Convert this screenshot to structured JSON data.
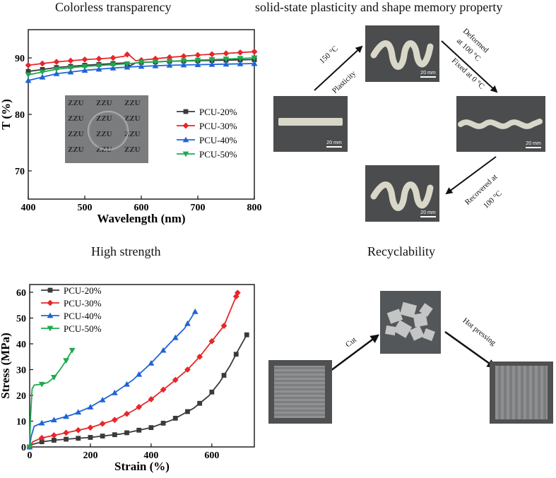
{
  "titles": {
    "a": "Colorless transparency",
    "b": "solid-state plasticity and shape memory property",
    "c": "High strength",
    "d": "Recyclability"
  },
  "shape_memory": {
    "arrow1_top": "150 °C",
    "arrow1_bottom": "Plasticity",
    "arrow2_top_1": "Deformed",
    "arrow2_top_2": "at 100 °C",
    "arrow2_bottom": "Fixed at 0 °C",
    "arrow3_1": "Recovered at",
    "arrow3_2": "100 °C",
    "scale_label": "20 mm"
  },
  "recycle": {
    "cut": "Cut",
    "hot": "Hot pressing"
  },
  "inset_text": "ZZU",
  "colors": {
    "s1": "#3a3a3a",
    "s2": "#e8262a",
    "s3": "#1f64d8",
    "s4": "#1fa84f"
  },
  "chart_data": [
    {
      "type": "line",
      "title": "Colorless transparency",
      "xlabel": "Wavelength (nm)",
      "ylabel": "T (%)",
      "xlim": [
        400,
        800
      ],
      "ylim": [
        65,
        95
      ],
      "xticks": [
        400,
        500,
        600,
        700,
        800
      ],
      "yticks": [
        70,
        80,
        90
      ],
      "legend": "right",
      "series": [
        {
          "name": "PCU-20%",
          "x": [
            400,
            450,
            500,
            550,
            570,
            580,
            590,
            600,
            650,
            700,
            750,
            800
          ],
          "y": [
            87.6,
            88.3,
            88.7,
            89.0,
            89.1,
            88.6,
            89.1,
            89.2,
            89.4,
            89.5,
            89.6,
            89.7
          ]
        },
        {
          "name": "PCU-30%",
          "x": [
            400,
            450,
            500,
            550,
            570,
            575,
            580,
            590,
            600,
            650,
            700,
            750,
            800
          ],
          "y": [
            88.7,
            89.3,
            89.7,
            90.0,
            90.3,
            90.6,
            90.4,
            89.5,
            89.6,
            90.1,
            90.5,
            90.8,
            91.1
          ]
        },
        {
          "name": "PCU-40%",
          "x": [
            400,
            450,
            500,
            550,
            580,
            600,
            650,
            700,
            750,
            800
          ],
          "y": [
            86.0,
            87.2,
            87.8,
            88.2,
            88.4,
            88.5,
            88.7,
            88.8,
            88.9,
            89.0
          ]
        },
        {
          "name": "PCU-50%",
          "x": [
            400,
            450,
            500,
            550,
            580,
            600,
            650,
            700,
            750,
            800
          ],
          "y": [
            87.0,
            88.0,
            88.5,
            88.8,
            89.0,
            89.2,
            89.4,
            89.6,
            89.8,
            90.0
          ]
        }
      ]
    },
    {
      "type": "line",
      "title": "High strength",
      "xlabel": "Strain (%)",
      "ylabel": "Stress (MPa)",
      "xlim": [
        0,
        740
      ],
      "ylim": [
        0,
        63
      ],
      "xticks": [
        0,
        200,
        400,
        600
      ],
      "yticks": [
        0,
        10,
        20,
        30,
        40,
        50,
        60
      ],
      "legend": "top-left",
      "series": [
        {
          "name": "PCU-20%",
          "x": [
            0,
            10,
            40,
            80,
            120,
            200,
            300,
            400,
            470,
            540,
            590,
            625,
            660,
            690,
            715
          ],
          "y": [
            0,
            1.0,
            2.0,
            2.6,
            3.0,
            3.7,
            5.0,
            7.5,
            10.5,
            15.0,
            19.8,
            25.0,
            31.5,
            38.2,
            43.5
          ]
        },
        {
          "name": "PCU-30%",
          "x": [
            0,
            10,
            40,
            80,
            140,
            200,
            280,
            340,
            400,
            470,
            520,
            560,
            600,
            640,
            685
          ],
          "y": [
            0,
            2.0,
            3.5,
            4.5,
            6.0,
            7.5,
            10.5,
            14.0,
            18.5,
            25.0,
            30.0,
            35.0,
            41.0,
            47.0,
            59.8
          ]
        },
        {
          "name": "PCU-40%",
          "x": [
            0,
            5,
            15,
            40,
            80,
            140,
            200,
            280,
            340,
            400,
            460,
            510,
            545
          ],
          "y": [
            0,
            4.0,
            8.0,
            9.3,
            10.5,
            12.5,
            15.5,
            21.0,
            26.0,
            32.5,
            40.0,
            46.0,
            52.5
          ]
        },
        {
          "name": "PCU-50%",
          "x": [
            0,
            3,
            8,
            15,
            40,
            60,
            80,
            100,
            120,
            140
          ],
          "y": [
            0,
            12.0,
            22.5,
            24.0,
            24.3,
            25.0,
            27.0,
            30.0,
            33.5,
            37.5
          ]
        }
      ]
    }
  ]
}
